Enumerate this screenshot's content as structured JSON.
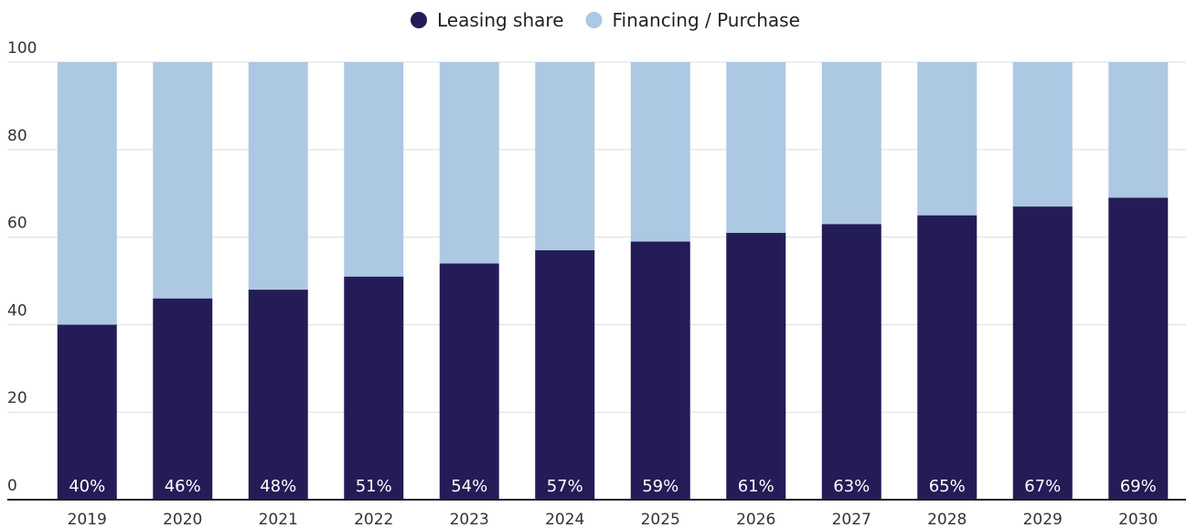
{
  "chart_data": {
    "type": "stacked_bar",
    "categories": [
      "2019",
      "2020",
      "2021",
      "2022",
      "2023",
      "2024",
      "2025",
      "2026",
      "2027",
      "2028",
      "2029",
      "2030"
    ],
    "series": [
      {
        "name": "Leasing share",
        "color": "#231c57",
        "values": [
          40,
          46,
          48,
          51,
          54,
          57,
          59,
          61,
          63,
          65,
          67,
          69
        ],
        "value_labels": [
          "40%",
          "46%",
          "48%",
          "51%",
          "54%",
          "57%",
          "59%",
          "61%",
          "63%",
          "65%",
          "67%",
          "69%"
        ]
      },
      {
        "name": "Financing / Purchase",
        "color": "#adc8e2",
        "values": [
          60,
          54,
          52,
          49,
          46,
          43,
          41,
          39,
          37,
          35,
          33,
          31
        ]
      }
    ],
    "ylim": [
      0,
      100
    ],
    "yticks": [
      0,
      20,
      40,
      60,
      80,
      100
    ],
    "grid": true,
    "legend": "top"
  }
}
